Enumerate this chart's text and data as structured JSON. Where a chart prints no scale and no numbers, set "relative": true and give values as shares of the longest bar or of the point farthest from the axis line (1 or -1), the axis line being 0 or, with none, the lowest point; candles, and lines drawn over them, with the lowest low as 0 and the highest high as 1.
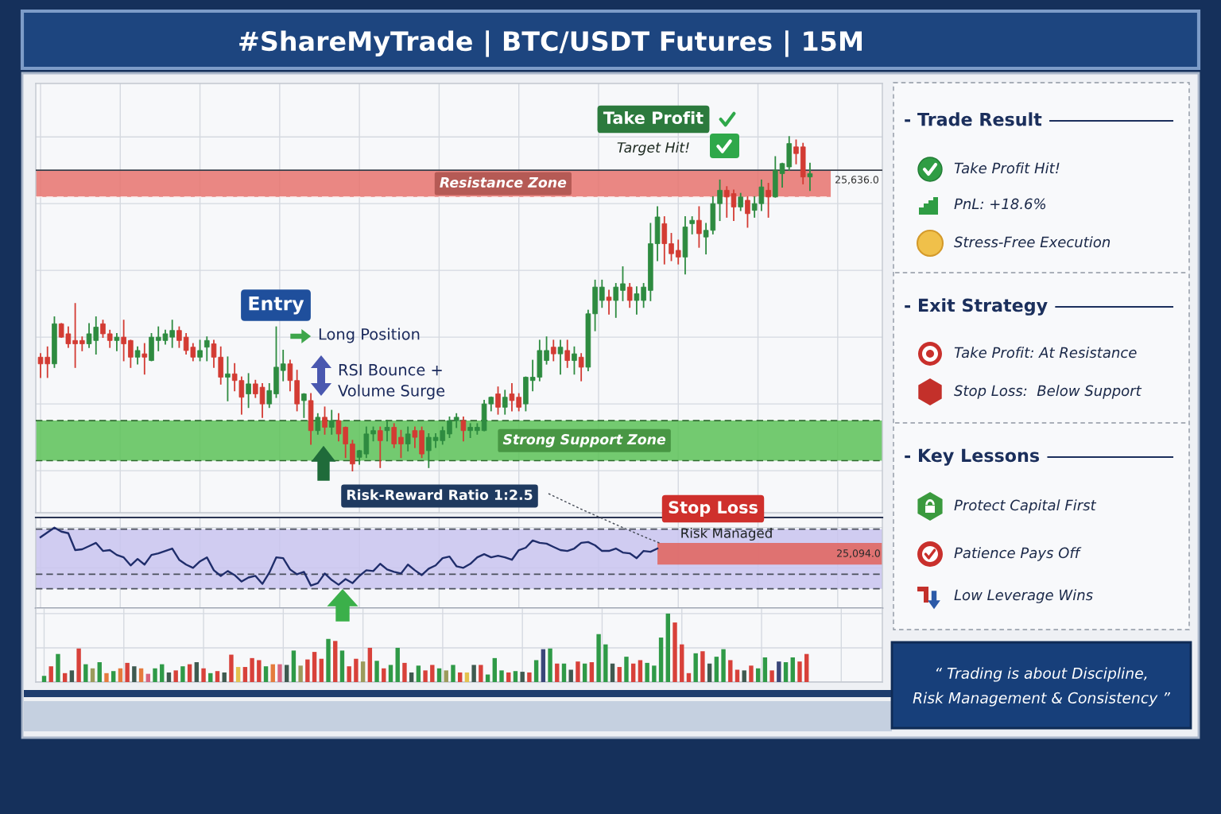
{
  "chart_data": [
    {
      "type": "candlestick",
      "title": "#ShareMyTrade | BTC/USDT Futures | 15M",
      "categories": [
        null,
        null,
        null,
        null,
        null,
        null,
        null,
        null,
        null,
        null,
        null,
        null,
        null,
        null,
        null,
        null,
        null,
        null,
        null,
        null,
        null,
        null,
        null,
        null,
        null,
        null,
        null,
        null,
        null,
        null,
        null,
        null,
        null,
        null,
        null,
        null,
        null,
        null,
        null,
        null,
        null,
        null,
        null,
        null,
        null,
        null,
        null,
        null,
        null,
        null,
        null,
        null,
        null,
        null,
        null,
        null,
        null,
        null,
        null,
        null,
        null,
        null,
        null,
        null,
        null,
        null,
        null,
        null,
        null,
        null,
        null,
        null,
        null,
        null,
        null,
        null,
        null,
        null,
        null,
        null,
        null,
        null,
        null,
        null,
        null,
        null,
        null,
        null,
        null,
        null,
        null,
        null,
        null,
        null,
        null,
        null,
        null,
        null,
        null,
        null,
        null,
        null,
        null,
        null,
        null,
        null,
        null,
        null,
        null,
        null,
        null,
        null
      ],
      "ohlc": [
        [
          0.34,
          0.35,
          0.28,
          0.32
        ],
        [
          0.34,
          0.37,
          0.28,
          0.32
        ],
        [
          0.32,
          0.46,
          0.31,
          0.44
        ],
        [
          0.44,
          0.44,
          0.4,
          0.4
        ],
        [
          0.41,
          0.43,
          0.37,
          0.38
        ],
        [
          0.39,
          0.5,
          0.31,
          0.38
        ],
        [
          0.39,
          0.4,
          0.36,
          0.38
        ],
        [
          0.38,
          0.44,
          0.37,
          0.41
        ],
        [
          0.39,
          0.46,
          0.35,
          0.43
        ],
        [
          0.44,
          0.45,
          0.4,
          0.41
        ],
        [
          0.41,
          0.42,
          0.37,
          0.39
        ],
        [
          0.39,
          0.41,
          0.36,
          0.4
        ],
        [
          0.4,
          0.45,
          0.33,
          0.38
        ],
        [
          0.39,
          0.39,
          0.31,
          0.34
        ],
        [
          0.34,
          0.37,
          0.32,
          0.36
        ],
        [
          0.35,
          0.38,
          0.29,
          0.34
        ],
        [
          0.33,
          0.41,
          0.33,
          0.4
        ],
        [
          0.39,
          0.43,
          0.36,
          0.4
        ],
        [
          0.39,
          0.42,
          0.38,
          0.41
        ],
        [
          0.4,
          0.45,
          0.37,
          0.42
        ],
        [
          0.42,
          0.43,
          0.37,
          0.39
        ],
        [
          0.4,
          0.41,
          0.35,
          0.36
        ],
        [
          0.37,
          0.38,
          0.33,
          0.34
        ],
        [
          0.34,
          0.39,
          0.33,
          0.36
        ],
        [
          0.37,
          0.4,
          0.33,
          0.39
        ],
        [
          0.38,
          0.39,
          0.31,
          0.34
        ],
        [
          0.34,
          0.37,
          0.26,
          0.28
        ],
        [
          0.28,
          0.34,
          0.21,
          0.29
        ],
        [
          0.29,
          0.32,
          0.24,
          0.27
        ],
        [
          0.27,
          0.28,
          0.17,
          0.22
        ],
        [
          0.23,
          0.29,
          0.19,
          0.26
        ],
        [
          0.26,
          0.27,
          0.22,
          0.23
        ],
        [
          0.25,
          0.26,
          0.16,
          0.2
        ],
        [
          0.2,
          0.26,
          0.19,
          0.24
        ],
        [
          0.23,
          0.43,
          0.22,
          0.31
        ],
        [
          0.3,
          0.36,
          0.27,
          0.32
        ],
        [
          0.32,
          0.33,
          0.24,
          0.27
        ],
        [
          0.27,
          0.3,
          0.18,
          0.2
        ],
        [
          0.21,
          0.23,
          0.16,
          0.23
        ],
        [
          0.21,
          0.23,
          0.08,
          0.12
        ],
        [
          0.12,
          0.17,
          0.11,
          0.16
        ],
        [
          0.16,
          0.19,
          0.11,
          0.13
        ],
        [
          0.13,
          0.18,
          0.11,
          0.15
        ],
        [
          0.15,
          0.17,
          0.09,
          0.11
        ],
        [
          0.13,
          0.13,
          0.04,
          0.08
        ],
        [
          0.08,
          0.09,
          0.0,
          0.02
        ],
        [
          0.04,
          0.06,
          0.02,
          0.06
        ],
        [
          0.05,
          0.13,
          0.04,
          0.11
        ],
        [
          0.11,
          0.13,
          0.09,
          0.12
        ],
        [
          0.12,
          0.13,
          0.01,
          0.09
        ],
        [
          0.12,
          0.15,
          0.09,
          0.13
        ],
        [
          0.13,
          0.14,
          0.07,
          0.08
        ],
        [
          0.1,
          0.12,
          0.04,
          0.08
        ],
        [
          0.08,
          0.13,
          0.06,
          0.11
        ],
        [
          0.12,
          0.13,
          0.07,
          0.1
        ],
        [
          0.12,
          0.13,
          0.04,
          0.05
        ],
        [
          0.06,
          0.11,
          0.01,
          0.1
        ],
        [
          0.09,
          0.11,
          0.07,
          0.1
        ],
        [
          0.09,
          0.13,
          0.08,
          0.12
        ],
        [
          0.11,
          0.16,
          0.1,
          0.15
        ],
        [
          0.15,
          0.17,
          0.13,
          0.16
        ],
        [
          0.15,
          0.16,
          0.09,
          0.12
        ],
        [
          0.12,
          0.14,
          0.1,
          0.13
        ],
        [
          0.12,
          0.14,
          0.11,
          0.13
        ],
        [
          0.12,
          0.21,
          0.12,
          0.2
        ],
        [
          0.2,
          0.22,
          0.18,
          0.22
        ],
        [
          0.23,
          0.25,
          0.17,
          0.19
        ],
        [
          0.19,
          0.24,
          0.17,
          0.22
        ],
        [
          0.23,
          0.26,
          0.18,
          0.21
        ],
        [
          0.22,
          0.23,
          0.18,
          0.19
        ],
        [
          0.2,
          0.28,
          0.18,
          0.28
        ],
        [
          0.27,
          0.33,
          0.24,
          0.28
        ],
        [
          0.28,
          0.39,
          0.27,
          0.36
        ],
        [
          0.33,
          0.4,
          0.32,
          0.36
        ],
        [
          0.37,
          0.39,
          0.33,
          0.35
        ],
        [
          0.35,
          0.39,
          0.29,
          0.37
        ],
        [
          0.36,
          0.39,
          0.31,
          0.33
        ],
        [
          0.33,
          0.37,
          0.29,
          0.35
        ],
        [
          0.34,
          0.35,
          0.27,
          0.31
        ],
        [
          0.31,
          0.48,
          0.3,
          0.47
        ],
        [
          0.47,
          0.57,
          0.42,
          0.55
        ],
        [
          0.51,
          0.57,
          0.49,
          0.55
        ],
        [
          0.52,
          0.54,
          0.47,
          0.51
        ],
        [
          0.51,
          0.56,
          0.46,
          0.55
        ],
        [
          0.54,
          0.61,
          0.51,
          0.56
        ],
        [
          0.55,
          0.56,
          0.49,
          0.51
        ],
        [
          0.51,
          0.55,
          0.47,
          0.53
        ],
        [
          0.51,
          0.56,
          0.49,
          0.55
        ],
        [
          0.54,
          0.74,
          0.51,
          0.68
        ],
        [
          0.68,
          0.79,
          0.63,
          0.76
        ],
        [
          0.74,
          0.76,
          0.62,
          0.68
        ],
        [
          0.68,
          0.71,
          0.63,
          0.65
        ],
        [
          0.66,
          0.69,
          0.62,
          0.64
        ],
        [
          0.64,
          0.76,
          0.59,
          0.73
        ],
        [
          0.74,
          0.76,
          0.71,
          0.75
        ],
        [
          0.75,
          0.79,
          0.67,
          0.71
        ],
        [
          0.7,
          0.74,
          0.65,
          0.72
        ],
        [
          0.72,
          0.82,
          0.71,
          0.8
        ],
        [
          0.8,
          0.87,
          0.75,
          0.84
        ],
        [
          0.84,
          0.85,
          0.76,
          0.82
        ],
        [
          0.83,
          0.84,
          0.75,
          0.79
        ],
        [
          0.79,
          0.83,
          0.78,
          0.82
        ],
        [
          0.81,
          0.82,
          0.73,
          0.77
        ],
        [
          0.78,
          0.82,
          0.76,
          0.8
        ],
        [
          0.8,
          0.87,
          0.78,
          0.85
        ],
        [
          0.84,
          0.86,
          0.76,
          0.82
        ],
        [
          0.82,
          0.94,
          0.82,
          0.9
        ],
        [
          0.89,
          0.92,
          0.85,
          0.92
        ],
        [
          0.91,
          1.0,
          0.9,
          0.98
        ],
        [
          0.97,
          0.99,
          0.92,
          0.95
        ],
        [
          0.97,
          0.98,
          0.86,
          0.88
        ],
        [
          0.88,
          0.92,
          0.84,
          0.89
        ]
      ],
      "colors": [
        "#d33b33",
        "#d33b33",
        "#2e8b40",
        "#d33b33",
        "#d33b33",
        "#d33b33",
        "#d33b33",
        "#2e8b40",
        "#2e8b40",
        "#d33b33",
        "#d33b33",
        "#2e8b40",
        "#d33b33",
        "#d33b33",
        "#2e8b40",
        "#d33b33",
        "#2e8b40",
        "#2e8b40",
        "#2e8b40",
        "#2e8b40",
        "#d33b33",
        "#d33b33",
        "#d33b33",
        "#2e8b40",
        "#2e8b40",
        "#d33b33",
        "#d33b33",
        "#2e8b40",
        "#d33b33",
        "#d33b33",
        "#2e8b40",
        "#d33b33",
        "#d33b33",
        "#2e8b40",
        "#2e8b40",
        "#2e8b40",
        "#d33b33",
        "#d33b33",
        "#2e8b40",
        "#d33b33",
        "#2e8b40",
        "#d33b33",
        "#2e8b40",
        "#d33b33",
        "#d33b33",
        "#d33b33",
        "#2e8b40",
        "#2e8b40",
        "#2e8b40",
        "#d33b33",
        "#2e8b40",
        "#d33b33",
        "#d33b33",
        "#2e8b40",
        "#d33b33",
        "#d33b33",
        "#2e8b40",
        "#2e8b40",
        "#2e8b40",
        "#2e8b40",
        "#2e8b40",
        "#d33b33",
        "#2e8b40",
        "#2e8b40",
        "#2e8b40",
        "#2e8b40",
        "#d33b33",
        "#2e8b40",
        "#d33b33",
        "#d33b33",
        "#2e8b40",
        "#2e8b40",
        "#2e8b40",
        "#2e8b40",
        "#d33b33",
        "#2e8b40",
        "#d33b33",
        "#2e8b40",
        "#d33b33",
        "#2e8b40",
        "#2e8b40",
        "#2e8b40",
        "#d33b33",
        "#2e8b40",
        "#2e8b40",
        "#d33b33",
        "#2e8b40",
        "#2e8b40",
        "#2e8b40",
        "#2e8b40",
        "#d33b33",
        "#d33b33",
        "#d33b33",
        "#2e8b40",
        "#2e8b40",
        "#d33b33",
        "#2e8b40",
        "#2e8b40",
        "#2e8b40",
        "#d33b33",
        "#d33b33",
        "#2e8b40",
        "#d33b33",
        "#2e8b40",
        "#2e8b40",
        "#d33b33",
        "#2e8b40",
        "#2e8b40",
        "#2e8b40",
        "#d33b33",
        "#d33b33",
        "#2e8b40"
      ],
      "relative": true,
      "grid": true,
      "tick_labels": false,
      "bands": [
        {
          "axis": "y",
          "from": 0.82,
          "to": 0.9,
          "label": "Resistance Zone",
          "color": "#e8736d"
        },
        {
          "axis": "y",
          "from": 0.03,
          "to": 0.15,
          "label": "Strong Support Zone",
          "color": "#5cc257"
        }
      ],
      "ref_lines": [
        {
          "axis": "y",
          "value": 0.9,
          "color": "#3a3f4a"
        },
        {
          "axis": "y",
          "value": 0.82,
          "line_style": "dashed",
          "color": "#fbe4e2"
        },
        {
          "axis": "y",
          "value": 0.15,
          "line_style": "dashed",
          "color": "#2f6b30"
        },
        {
          "axis": "y",
          "value": 0.03,
          "line_style": "dashed",
          "color": "#2f6b30"
        }
      ],
      "annotations": [
        "Take Profit",
        "Target Hit!",
        "Entry",
        "Long Position",
        "RSI Bounce +\nVolume Surge",
        "Risk-Reward Ratio 1:2.5",
        "25,636.0"
      ]
    },
    {
      "type": "line",
      "categories": [
        null,
        null,
        null,
        null,
        null,
        null,
        null,
        null,
        null,
        null,
        null,
        null,
        null,
        null,
        null,
        null,
        null,
        null,
        null,
        null,
        null,
        null,
        null,
        null,
        null,
        null,
        null,
        null,
        null,
        null,
        null,
        null,
        null,
        null,
        null,
        null,
        null,
        null,
        null,
        null,
        null,
        null,
        null,
        null,
        null,
        null,
        null,
        null,
        null,
        null,
        null,
        null,
        null,
        null,
        null,
        null,
        null,
        null,
        null,
        null,
        null,
        null,
        null,
        null,
        null,
        null,
        null,
        null,
        null,
        null,
        null,
        null,
        null,
        null,
        null,
        null,
        null,
        null,
        null,
        null,
        null,
        null,
        null,
        null,
        null,
        null,
        null,
        null,
        null,
        null,
        null,
        null,
        null,
        null,
        null,
        null,
        null,
        null,
        null,
        null,
        null,
        null,
        null,
        null,
        null,
        null,
        null,
        null,
        null,
        null,
        null,
        null
      ],
      "values": [
        0.88,
        0.94,
        1.0,
        0.95,
        0.93,
        0.72,
        0.73,
        0.77,
        0.81,
        0.71,
        0.72,
        0.66,
        0.63,
        0.53,
        0.61,
        0.54,
        0.66,
        0.68,
        0.71,
        0.74,
        0.6,
        0.54,
        0.5,
        0.58,
        0.63,
        0.47,
        0.4,
        0.46,
        0.41,
        0.33,
        0.38,
        0.4,
        0.3,
        0.44,
        0.63,
        0.62,
        0.48,
        0.42,
        0.45,
        0.28,
        0.31,
        0.43,
        0.35,
        0.29,
        0.36,
        0.31,
        0.4,
        0.47,
        0.46,
        0.55,
        0.48,
        0.45,
        0.43,
        0.54,
        0.47,
        0.41,
        0.49,
        0.53,
        0.62,
        0.64,
        0.52,
        0.5,
        0.55,
        0.63,
        0.67,
        0.63,
        0.65,
        0.63,
        0.6,
        0.72,
        0.75,
        0.84,
        0.81,
        0.8,
        0.76,
        0.72,
        0.71,
        0.74,
        0.81,
        0.82,
        0.78,
        0.71,
        0.71,
        0.74,
        0.69,
        0.68,
        0.62,
        0.71,
        0.7,
        0.74,
        null,
        null,
        null,
        null,
        null,
        null,
        null,
        null,
        null,
        null,
        null,
        null,
        null,
        null,
        null,
        null,
        null,
        null,
        null,
        null,
        null,
        null
      ],
      "color": "#1f2d6b",
      "relative": true,
      "grid": true,
      "tick_labels": false,
      "bands": [
        {
          "axis": "y",
          "from": 0.24,
          "to": 0.98,
          "color": "#c9c4ef"
        },
        {
          "axis": "y",
          "from": 0.54,
          "to": 0.81,
          "color": "#e2615a"
        }
      ],
      "ref_lines": [
        {
          "axis": "y",
          "value": 0.98,
          "line_style": "dashed"
        },
        {
          "axis": "y",
          "value": 0.42,
          "line_style": "dashed"
        },
        {
          "axis": "y",
          "value": 0.24,
          "line_style": "dashed"
        }
      ],
      "annotations": [
        "Stop Loss",
        "Risk Managed",
        "25,094.0"
      ]
    },
    {
      "type": "bar",
      "categories": [
        null,
        null,
        null,
        null,
        null,
        null,
        null,
        null,
        null,
        null,
        null,
        null,
        null,
        null,
        null,
        null,
        null,
        null,
        null,
        null,
        null,
        null,
        null,
        null,
        null,
        null,
        null,
        null,
        null,
        null,
        null,
        null,
        null,
        null,
        null,
        null,
        null,
        null,
        null,
        null,
        null,
        null,
        null,
        null,
        null,
        null,
        null,
        null,
        null,
        null,
        null,
        null,
        null,
        null,
        null,
        null,
        null,
        null,
        null,
        null,
        null,
        null,
        null,
        null,
        null,
        null,
        null,
        null,
        null,
        null,
        null,
        null,
        null,
        null,
        null,
        null,
        null,
        null,
        null,
        null,
        null,
        null,
        null,
        null,
        null,
        null,
        null,
        null,
        null,
        null,
        null,
        null,
        null,
        null,
        null,
        null,
        null,
        null,
        null,
        null,
        null,
        null,
        null,
        null,
        null,
        null,
        null,
        null,
        null,
        null,
        null
      ],
      "values": [
        0.09,
        0.23,
        0.41,
        0.13,
        0.17,
        0.49,
        0.26,
        0.2,
        0.29,
        0.13,
        0.16,
        0.2,
        0.28,
        0.23,
        0.2,
        0.12,
        0.2,
        0.26,
        0.14,
        0.17,
        0.23,
        0.26,
        0.29,
        0.2,
        0.13,
        0.16,
        0.14,
        0.4,
        0.22,
        0.22,
        0.35,
        0.32,
        0.23,
        0.26,
        0.26,
        0.25,
        0.46,
        0.24,
        0.33,
        0.44,
        0.34,
        0.63,
        0.6,
        0.46,
        0.23,
        0.34,
        0.3,
        0.5,
        0.31,
        0.2,
        0.25,
        0.5,
        0.28,
        0.14,
        0.24,
        0.17,
        0.25,
        0.2,
        0.17,
        0.25,
        0.14,
        0.14,
        0.25,
        0.25,
        0.11,
        0.35,
        0.17,
        0.14,
        0.16,
        0.15,
        0.14,
        0.32,
        0.48,
        0.49,
        0.27,
        0.27,
        0.18,
        0.3,
        0.27,
        0.29,
        0.7,
        0.55,
        0.27,
        0.22,
        0.37,
        0.27,
        0.32,
        0.28,
        0.24,
        0.65,
        1.0,
        0.87,
        0.55,
        0.13,
        0.42,
        0.45,
        0.27,
        0.37,
        0.48,
        0.32,
        0.18,
        0.17,
        0.24,
        0.2,
        0.36,
        0.17,
        0.3,
        0.29,
        0.36,
        0.3,
        0.41
      ],
      "colors": [
        "#2f9a47",
        "#d8413a",
        "#2f9a47",
        "#d8413a",
        "#3f5a50",
        "#d8413a",
        "#2f9a47",
        "#9c9b5c",
        "#2f9a47",
        "#e57b3d",
        "#2f9a47",
        "#e57b3d",
        "#d8413a",
        "#3f5a50",
        "#e57b3d",
        "#d9637e",
        "#2f9a47",
        "#2f9a47",
        "#3f5a50",
        "#d8413a",
        "#2f9a47",
        "#d8413a",
        "#3f5a50",
        "#d8413a",
        "#2f9a47",
        "#d8413a",
        "#3f5a50",
        "#d8413a",
        "#e3c24f",
        "#d8413a",
        "#d8413a",
        "#d8413a",
        "#2f9a47",
        "#e57b3d",
        "#d9637e",
        "#3f5a50",
        "#2f9a47",
        "#9c9b5c",
        "#d8413a",
        "#d8413a",
        "#d8413a",
        "#2f9a47",
        "#d8413a",
        "#2f9a47",
        "#d8413a",
        "#d8413a",
        "#9c9b5c",
        "#d8413a",
        "#2f9a47",
        "#d8413a",
        "#2f9a47",
        "#2f9a47",
        "#d8413a",
        "#3f5a50",
        "#2f9a47",
        "#d8413a",
        "#d8413a",
        "#2f9a47",
        "#9c9b5c",
        "#2f9a47",
        "#d8413a",
        "#e3c24f",
        "#3f5a50",
        "#d8413a",
        "#2f9a47",
        "#2f9a47",
        "#2f9a47",
        "#d8413a",
        "#2f9a47",
        "#3f5a50",
        "#d8413a",
        "#2f9a47",
        "#3a477a",
        "#2f9a47",
        "#d8413a",
        "#2f9a47",
        "#3f5a50",
        "#d8413a",
        "#2f9a47",
        "#d8413a",
        "#2f9a47",
        "#2f9a47",
        "#3f5a50",
        "#d8413a",
        "#2f9a47",
        "#d8413a",
        "#d8413a",
        "#2f9a47",
        "#2f9a47",
        "#2f9a47",
        "#2f9a47",
        "#d8413a",
        "#d8413a",
        "#d8413a",
        "#2f9a47",
        "#d8413a",
        "#3f5a50",
        "#2f9a47",
        "#2f9a47",
        "#d8413a",
        "#d8413a",
        "#3f5a50",
        "#d8413a",
        "#2f9a47",
        "#2f9a47",
        "#d8413a",
        "#3a477a",
        "#2f9a47",
        "#2f9a47",
        "#d8413a",
        "#d8413a"
      ],
      "relative": true,
      "grid": true,
      "tick_labels": false
    },
    {
      "type": "other",
      "title": "- Trade Result",
      "annotations": [
        "Take Profit Hit!",
        "PnL: +18.6%",
        "Stress-Free Execution"
      ]
    },
    {
      "type": "other",
      "title": "- Exit Strategy",
      "annotations": [
        "Take Profit: At Resistance",
        "Stop Loss:  Below Support"
      ]
    },
    {
      "type": "other",
      "title": "- Key Lessons",
      "annotations": [
        "Protect Capital First",
        "Patience Pays Off",
        "Low Leverage Wins"
      ]
    },
    {
      "type": "other",
      "title": "“ Trading is about Discipline,\nRisk Management & Consistency ”"
    }
  ]
}
